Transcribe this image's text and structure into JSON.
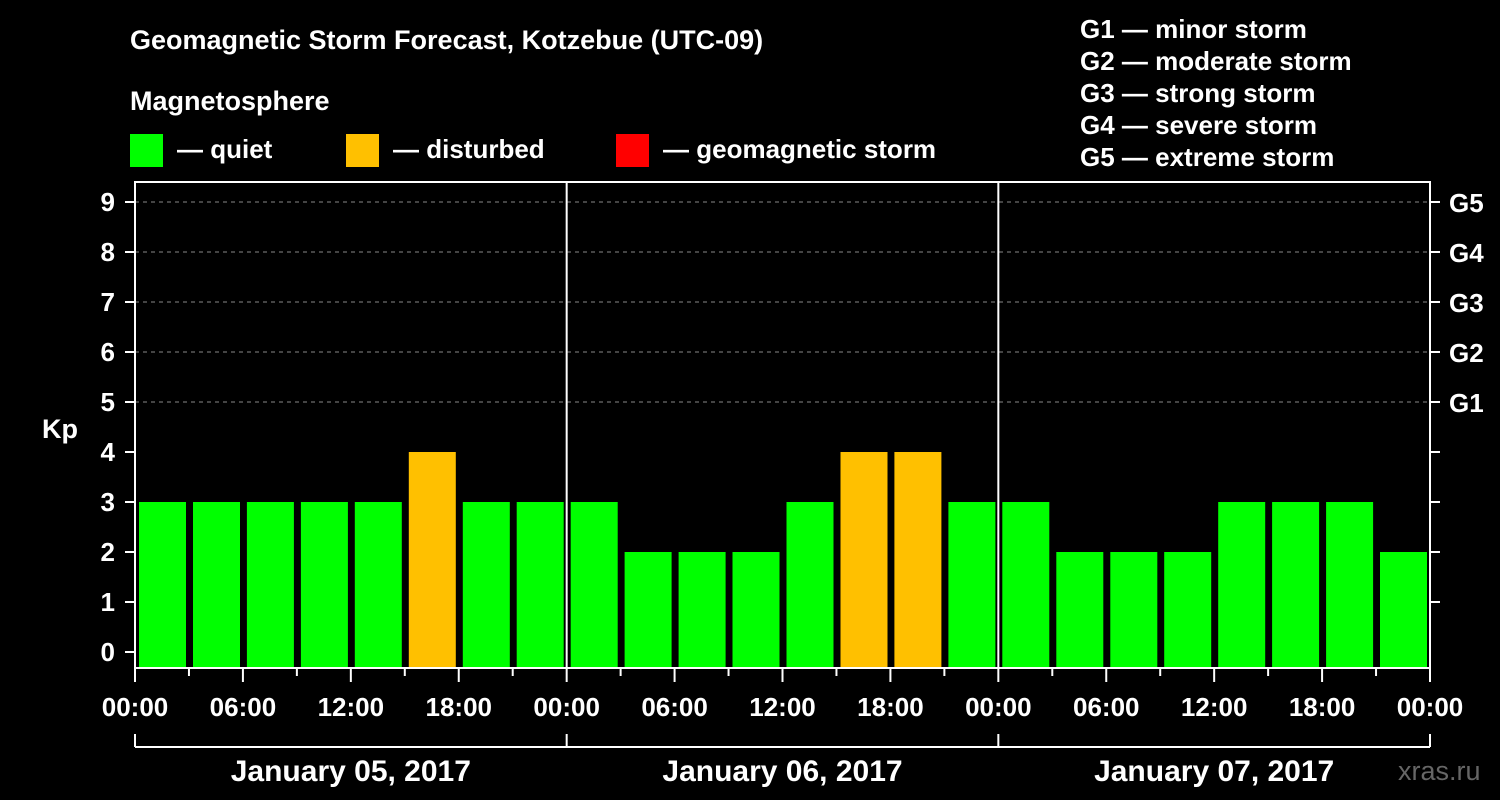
{
  "title": "Geomagnetic Storm Forecast, Kotzebue (UTC-09)",
  "legend": {
    "heading": "Magnetosphere",
    "items": [
      {
        "label": "— quiet",
        "color": "#00ff00"
      },
      {
        "label": "— disturbed",
        "color": "#ffc000"
      },
      {
        "label": "— geomagnetic storm",
        "color": "#ff0000"
      }
    ]
  },
  "storm_scale": [
    "G1 — minor storm",
    "G2 — moderate storm",
    "G3 — strong storm",
    "G4 — severe storm",
    "G5 — extreme storm"
  ],
  "watermark": "xras.ru",
  "chart_data": {
    "type": "bar",
    "ylabel": "Kp",
    "ylim": [
      0,
      9
    ],
    "yticks": [
      "0",
      "1",
      "2",
      "3",
      "4",
      "5",
      "6",
      "7",
      "8",
      "9"
    ],
    "right_ticks": [
      {
        "kp": 5,
        "label": "G1"
      },
      {
        "kp": 6,
        "label": "G2"
      },
      {
        "kp": 7,
        "label": "G3"
      },
      {
        "kp": 8,
        "label": "G4"
      },
      {
        "kp": 9,
        "label": "G5"
      }
    ],
    "xtick_labels": [
      "00:00",
      "06:00",
      "12:00",
      "18:00",
      "00:00",
      "06:00",
      "12:00",
      "18:00",
      "00:00",
      "06:00",
      "12:00",
      "18:00",
      "00:00"
    ],
    "days": [
      "January 05, 2017",
      "January 06, 2017",
      "January 07, 2017"
    ],
    "values": [
      3,
      3,
      3,
      3,
      3,
      4,
      3,
      3,
      3,
      2,
      2,
      2,
      3,
      4,
      4,
      3,
      3,
      2,
      2,
      2,
      3,
      3,
      3,
      2
    ],
    "colors": {
      "quiet": "#00ff00",
      "disturbed": "#ffc000",
      "storm": "#ff0000"
    },
    "thresholds": {
      "disturbed_min": 4,
      "storm_min": 5
    },
    "grid": true
  }
}
